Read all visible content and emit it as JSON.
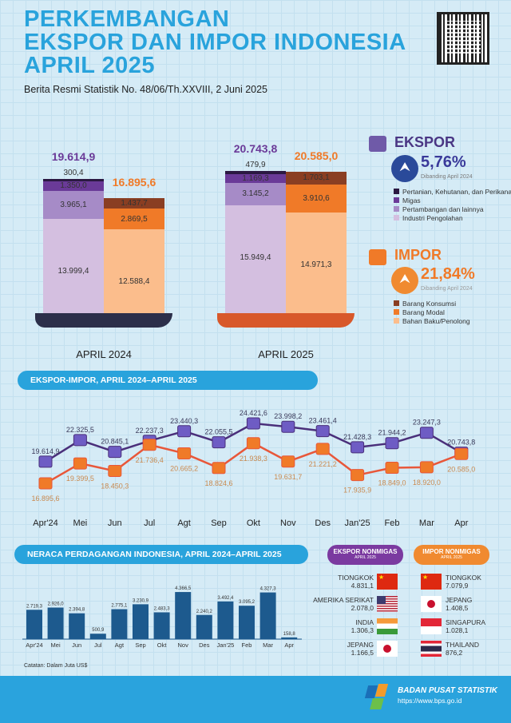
{
  "header": {
    "title_lines": [
      "PERKEMBANGAN",
      "EKSPOR DAN IMPOR INDONESIA",
      "APRIL 2025"
    ],
    "subtitle": "Berita Resmi Statistik No. 48/06/Th.XXVIII, 2 Juni 2025"
  },
  "colors": {
    "pertanian": "#2b1842",
    "migas": "#6a3a98",
    "pertambangan": "#a68bc7",
    "industri": "#d4bfe0",
    "konsumsi": "#8a3e22",
    "modal": "#f07a28",
    "bahan": "#fbbd8c",
    "accent": "#29a3dc",
    "export_line": "#4a2f7a",
    "import_line": "#e8573a",
    "balance_bar": "#1d5a8e"
  },
  "stacked": {
    "periods": [
      {
        "label": "APRIL 2024",
        "ekspor_total": "19.614,9",
        "impor_total": "16.895,6",
        "ekspor": [
          {
            "k": "industri",
            "v": 13999.4,
            "t": "13.999,4"
          },
          {
            "k": "pertambangan",
            "v": 3965.1,
            "t": "3.965,1"
          },
          {
            "k": "migas",
            "v": 1350.0,
            "t": "1.350,0"
          },
          {
            "k": "pertanian",
            "v": 300.4,
            "t": "300,4"
          }
        ],
        "impor": [
          {
            "k": "bahan",
            "v": 12588.4,
            "t": "12.588,4"
          },
          {
            "k": "modal",
            "v": 2869.5,
            "t": "2.869,5"
          },
          {
            "k": "konsumsi",
            "v": 1437.7,
            "t": "1.437,7"
          }
        ]
      },
      {
        "label": "APRIL 2025",
        "ekspor_total": "20.743,8",
        "impor_total": "20.585,0",
        "ekspor": [
          {
            "k": "industri",
            "v": 15949.4,
            "t": "15.949,4"
          },
          {
            "k": "pertambangan",
            "v": 3145.2,
            "t": "3.145,2"
          },
          {
            "k": "migas",
            "v": 1169.3,
            "t": "1.169,3"
          },
          {
            "k": "pertanian",
            "v": 479.9,
            "t": "479,9"
          }
        ],
        "impor": [
          {
            "k": "bahan",
            "v": 14971.3,
            "t": "14.971,3"
          },
          {
            "k": "modal",
            "v": 3910.6,
            "t": "3.910,6"
          },
          {
            "k": "konsumsi",
            "v": 1703.1,
            "t": "1.703,1"
          }
        ]
      }
    ]
  },
  "ekspor": {
    "title": "EKSPOR",
    "change": "5,76%",
    "direction": "up",
    "compare": "Dibanding April 2024",
    "legend": [
      "Pertanian, Kehutanan, dan Perikanan",
      "Migas",
      "Pertambangan dan lainnya",
      "Industri Pengolahan"
    ]
  },
  "impor": {
    "title": "IMPOR",
    "change": "21,84%",
    "direction": "up",
    "compare": "Dibanding April 2024",
    "legend": [
      "Barang Konsumsi",
      "Barang Modal",
      "Bahan Baku/Penolong"
    ]
  },
  "chart_data": [
    {
      "type": "line",
      "title": "EKSPOR-IMPOR, APRIL 2024–APRIL 2025",
      "categories": [
        "Apr'24",
        "Mei",
        "Jun",
        "Jul",
        "Agt",
        "Sep",
        "Okt",
        "Nov",
        "Des",
        "Jan'25",
        "Feb",
        "Mar",
        "Apr"
      ],
      "series": [
        {
          "values": [
            19614.9,
            22325.5,
            20845.1,
            22237.3,
            23440.3,
            22055.5,
            24421.6,
            23998.2,
            23461.4,
            21428.3,
            21944.2,
            23247.3,
            20743.8
          ],
          "labels": [
            "19.614,9",
            "22.325,5",
            "20.845,1",
            "22.237,3",
            "23.440,3",
            "22.055,5",
            "24.421,6",
            "23.998,2",
            "23.461,4",
            "21.428,3",
            "21.944,2",
            "23.247,3",
            "20.743,8"
          ]
        },
        {
          "values": [
            16895.6,
            19399.5,
            18450.3,
            21736.4,
            20665.2,
            18824.6,
            21938.3,
            19631.7,
            21221.2,
            17935.9,
            18849.0,
            18920.0,
            20585.0
          ],
          "labels": [
            "16.895,6",
            "19.399,5",
            "18.450,3",
            "21.736,4",
            "20.665,2",
            "18.824,6",
            "21.938,3",
            "19.631,7",
            "21.221,2",
            "17.935,9",
            "18.849,0",
            "18.920,0",
            "20.585,0"
          ]
        }
      ]
    },
    {
      "type": "bar",
      "title": "NERACA PERDAGANGAN INDONESIA, APRIL 2024–APRIL 2025",
      "categories": [
        "Apr'24",
        "Mei",
        "Jun",
        "Jul",
        "Agt",
        "Sep",
        "Okt",
        "Nov",
        "Des",
        "Jan'25",
        "Feb",
        "Mar",
        "Apr"
      ],
      "values": [
        2719.3,
        2926.0,
        2394.8,
        500.9,
        2775.1,
        3230.9,
        2483.3,
        4366.5,
        2240.2,
        3492.4,
        3095.2,
        4327.3,
        158.8
      ],
      "labels": [
        "2.719,3",
        "2.926,0",
        "2.394,8",
        "500,9",
        "2.775,1",
        "3.230,9",
        "2.483,3",
        "4.366,5",
        "2.240,2",
        "3.492,4",
        "3.095,2",
        "4.327,3",
        "158,8"
      ],
      "note": "Catatan: Dalam Juta US$"
    }
  ],
  "nonmigas": {
    "ekspor": {
      "title": "EKSPOR NONMIGAS",
      "period": "APRIL 2025",
      "items": [
        {
          "country": "TIONGKOK",
          "value": "4.831,1",
          "flag": "cn"
        },
        {
          "country": "AMERIKA SERIKAT",
          "value": "2.078,0",
          "flag": "us"
        },
        {
          "country": "INDIA",
          "value": "1.306,3",
          "flag": "in"
        },
        {
          "country": "JEPANG",
          "value": "1.166,5",
          "flag": "jp"
        }
      ]
    },
    "impor": {
      "title": "IMPOR NONMIGAS",
      "period": "APRIL 2025",
      "items": [
        {
          "country": "TIONGKOK",
          "value": "7.079,9",
          "flag": "cn"
        },
        {
          "country": "JEPANG",
          "value": "1.408,5",
          "flag": "jp"
        },
        {
          "country": "SINGAPURA",
          "value": "1.028,1",
          "flag": "sg"
        },
        {
          "country": "THAILAND",
          "value": "876,2",
          "flag": "th"
        }
      ]
    }
  },
  "footer": {
    "org": "BADAN PUSAT STATISTIK",
    "url": "https://www.bps.go.id"
  }
}
